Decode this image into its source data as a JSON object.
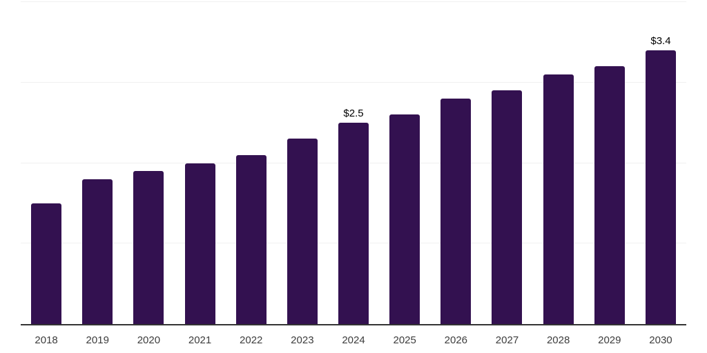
{
  "chart_data": {
    "type": "bar",
    "title": "",
    "xlabel": "",
    "ylabel": "",
    "categories": [
      "2018",
      "2019",
      "2020",
      "2021",
      "2022",
      "2023",
      "2024",
      "2025",
      "2026",
      "2027",
      "2028",
      "2029",
      "2030"
    ],
    "values": [
      1.5,
      1.8,
      1.9,
      2.0,
      2.1,
      2.3,
      2.5,
      2.6,
      2.8,
      2.9,
      3.1,
      3.2,
      3.4
    ],
    "data_labels": {
      "2024": "$2.5",
      "2030": "$3.4"
    },
    "ylim": [
      0,
      4
    ],
    "gridline_values": [
      1,
      2,
      3,
      4
    ],
    "grid": true,
    "legend_position": "none",
    "colors": {
      "bar": "#331150",
      "gridline": "#f0f0f0",
      "axis_line": "#333333",
      "value_label": "#000000",
      "tick_label": "#3c3c3c",
      "background": "#ffffff"
    }
  }
}
